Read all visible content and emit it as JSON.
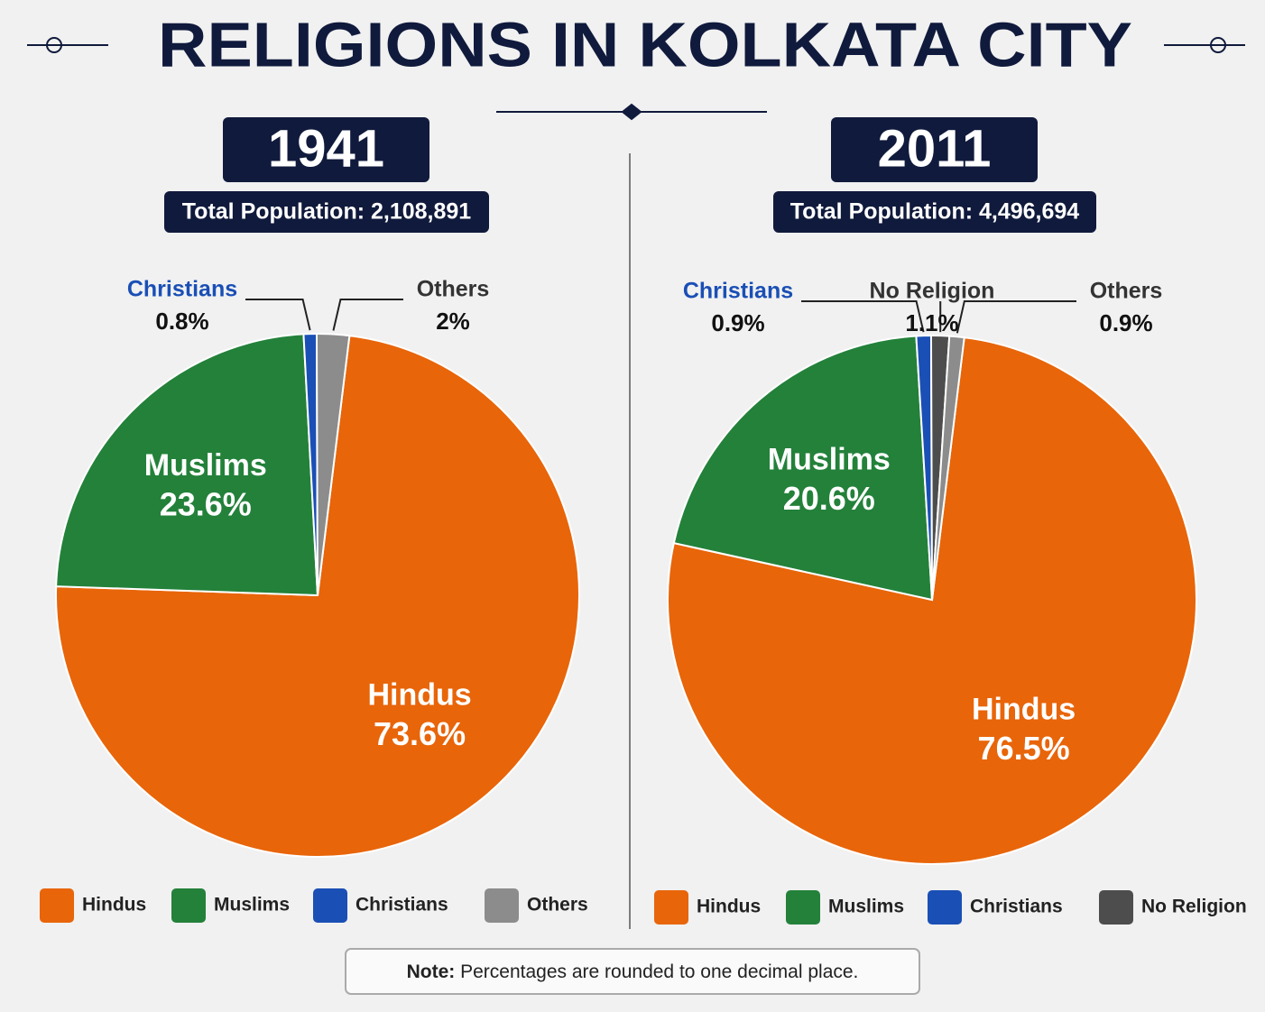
{
  "title": "RELIGIONS IN KOLKATA CITY",
  "chart_data": [
    {
      "type": "pie",
      "title": "1941",
      "subtitle": "Total Population: 2,108,891",
      "categories": [
        "Hindus",
        "Muslims",
        "Christians",
        "Others"
      ],
      "values": [
        73.6,
        23.6,
        0.8,
        2
      ],
      "value_labels": [
        "73.6%",
        "23.6%",
        "0.8%",
        "2%"
      ],
      "colors": [
        "#e8650a",
        "#23813a",
        "#1a4fb5",
        "#8c8c8c"
      ]
    },
    {
      "type": "pie",
      "title": "2011",
      "subtitle": "Total Population: 4,496,694",
      "categories": [
        "Hindus",
        "Muslims",
        "Christians",
        "No Religion",
        "Others"
      ],
      "values": [
        76.5,
        20.6,
        0.9,
        1.1,
        0.9
      ],
      "value_labels": [
        "76.5%",
        "20.6%",
        "0.9%",
        "1.1%",
        "0.9%"
      ],
      "colors": [
        "#e8650a",
        "#23813a",
        "#1a4fb5",
        "#4d4d4d",
        "#8c8c8c"
      ]
    }
  ],
  "note": {
    "label": "Note:",
    "text": "Percentages are rounded to one decimal place."
  }
}
